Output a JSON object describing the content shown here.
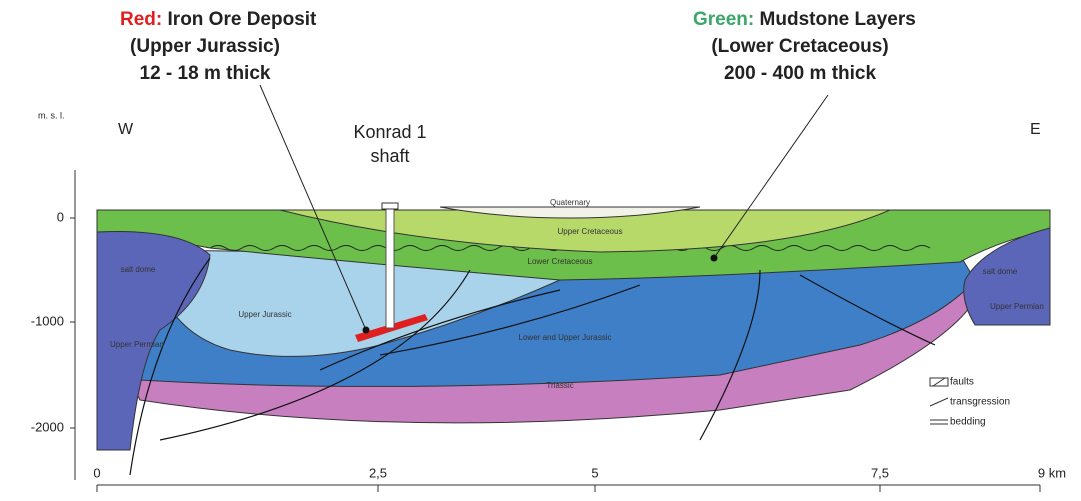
{
  "annotations": {
    "red": {
      "key": "Red:",
      "lines": [
        "Iron Ore Deposit",
        "(Upper Jurassic)",
        "12 - 18 m thick"
      ]
    },
    "green": {
      "key": "Green:",
      "lines": [
        "Mudstone Layers",
        "(Lower Cretaceous)",
        "200 - 400 m thick"
      ]
    }
  },
  "axis": {
    "y_title": "m. s. l.",
    "y_ticks": [
      "0",
      "-1000",
      "-2000"
    ],
    "x_ticks": [
      "0",
      "2,5",
      "5",
      "7,5",
      "9 km"
    ]
  },
  "directions": {
    "west": "W",
    "east": "E"
  },
  "shaft": [
    "Konrad 1",
    "shaft"
  ],
  "layers": {
    "quaternary": "Quaternary",
    "upper_cretaceous": "Upper Cretaceous",
    "lower_cretaceous": "Lower Cretaceous",
    "salt_dome_left": "salt dome",
    "salt_dome_right": "salt dome",
    "upper_jurassic": "Upper Jurassic",
    "lower_upper_jurassic": "Lower and Upper Jurassic",
    "upper_permian_left": "Upper Permian",
    "upper_permian_right": "Upper Permian",
    "triassic": "Triassic"
  },
  "legend": [
    "faults",
    "transgression",
    "bedding"
  ]
}
